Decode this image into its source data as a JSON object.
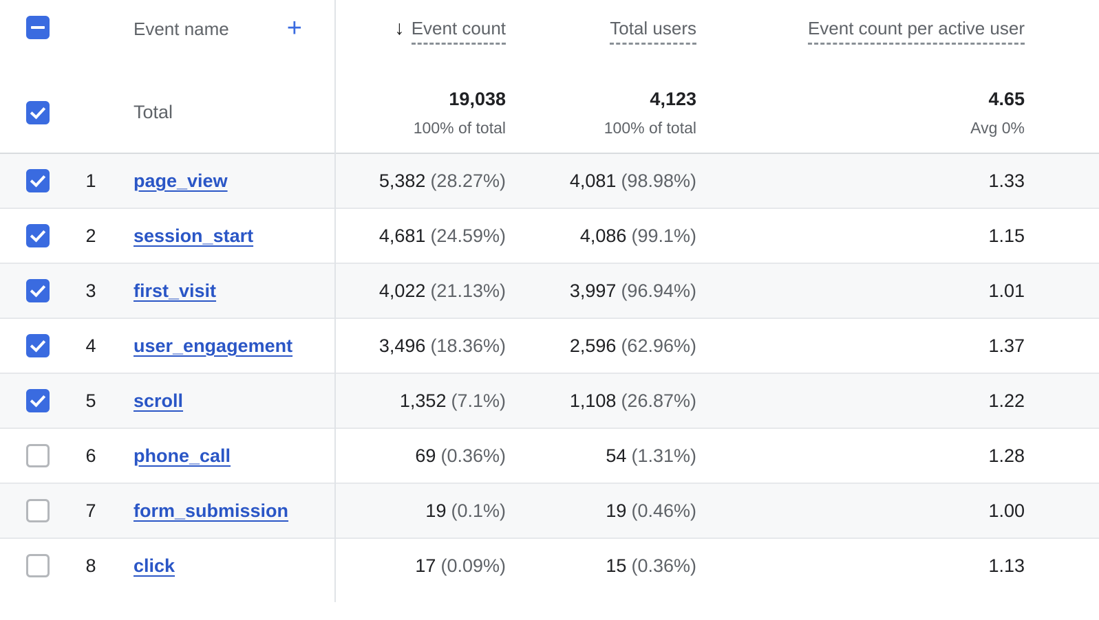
{
  "colors": {
    "accent_blue": "#3a6be0",
    "link_blue": "#2a56c6",
    "header_gray": "#5f6368",
    "text_dark": "#202124",
    "row_alt_bg": "#f7f8f9"
  },
  "header": {
    "select_all_indeterminate": true,
    "event_name_label": "Event name",
    "add_icon": "+",
    "sort_icon": "↓",
    "columns": [
      {
        "label": "Event count",
        "sorted": "descending"
      },
      {
        "label": "Total users"
      },
      {
        "label": "Event count per active user"
      }
    ]
  },
  "totals": {
    "checked": true,
    "label": "Total",
    "event_count": "19,038",
    "event_count_sub": "100% of total",
    "total_users": "4,123",
    "total_users_sub": "100% of total",
    "per_active_user": "4.65",
    "per_active_user_sub": "Avg 0%"
  },
  "rows": [
    {
      "index": "1",
      "checked": true,
      "event_name": "page_view",
      "event_count": "5,382",
      "event_count_pct": "(28.27%)",
      "total_users": "4,081",
      "total_users_pct": "(98.98%)",
      "per_active_user": "1.33"
    },
    {
      "index": "2",
      "checked": true,
      "event_name": "session_start",
      "event_count": "4,681",
      "event_count_pct": "(24.59%)",
      "total_users": "4,086",
      "total_users_pct": "(99.1%)",
      "per_active_user": "1.15"
    },
    {
      "index": "3",
      "checked": true,
      "event_name": "first_visit",
      "event_count": "4,022",
      "event_count_pct": "(21.13%)",
      "total_users": "3,997",
      "total_users_pct": "(96.94%)",
      "per_active_user": "1.01"
    },
    {
      "index": "4",
      "checked": true,
      "event_name": "user_engagement",
      "event_count": "3,496",
      "event_count_pct": "(18.36%)",
      "total_users": "2,596",
      "total_users_pct": "(62.96%)",
      "per_active_user": "1.37"
    },
    {
      "index": "5",
      "checked": true,
      "event_name": "scroll",
      "event_count": "1,352",
      "event_count_pct": "(7.1%)",
      "total_users": "1,108",
      "total_users_pct": "(26.87%)",
      "per_active_user": "1.22"
    },
    {
      "index": "6",
      "checked": false,
      "event_name": "phone_call",
      "event_count": "69",
      "event_count_pct": "(0.36%)",
      "total_users": "54",
      "total_users_pct": "(1.31%)",
      "per_active_user": "1.28"
    },
    {
      "index": "7",
      "checked": false,
      "event_name": "form_submission",
      "event_count": "19",
      "event_count_pct": "(0.1%)",
      "total_users": "19",
      "total_users_pct": "(0.46%)",
      "per_active_user": "1.00"
    },
    {
      "index": "8",
      "checked": false,
      "event_name": "click",
      "event_count": "17",
      "event_count_pct": "(0.09%)",
      "total_users": "15",
      "total_users_pct": "(0.36%)",
      "per_active_user": "1.13"
    }
  ]
}
